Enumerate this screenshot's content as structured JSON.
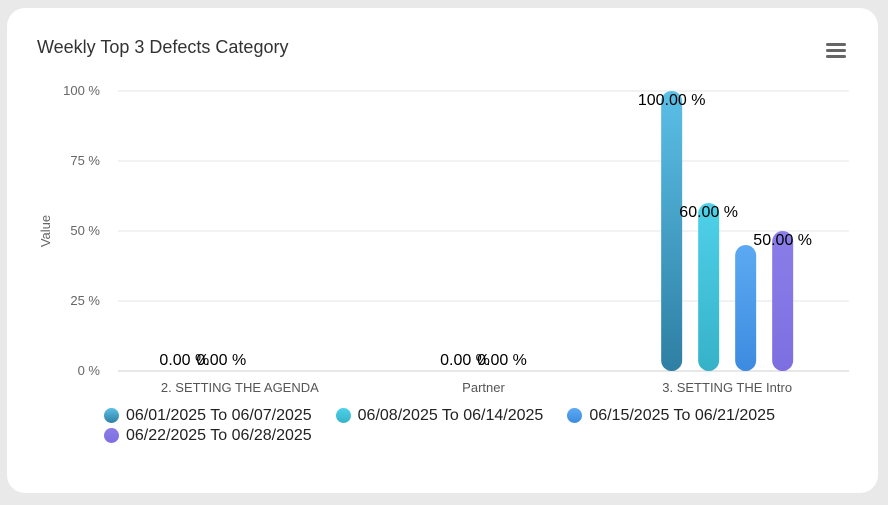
{
  "chart_data": {
    "type": "bar",
    "title": "Weekly Top 3 Defects Category",
    "ylabel": "Value",
    "ylim": [
      0,
      100
    ],
    "yticks": [
      "0 %",
      "25 %",
      "50 %",
      "75 %",
      "100 %"
    ],
    "ytick_values": [
      0,
      25,
      50,
      75,
      100
    ],
    "categories": [
      "2. SETTING THE AGENDA",
      "Partner",
      "3. SETTING THE Intro"
    ],
    "grid": true,
    "legend_position": "bottom-left",
    "series": [
      {
        "name": "06/01/2025 To 06/07/2025",
        "values": [
          0,
          0,
          100
        ],
        "labels": [
          "0.00 %",
          "",
          "100.00 %"
        ],
        "color_top": "#5bbfe6",
        "color_bottom": "#2e7fa3"
      },
      {
        "name": "06/08/2025 To 06/14/2025",
        "values": [
          0,
          0,
          60
        ],
        "labels": [
          "0.00 %",
          "0.00 %",
          "60.00 %"
        ],
        "color_top": "#4fd1ea",
        "color_bottom": "#36b2c8"
      },
      {
        "name": "06/15/2025 To 06/21/2025",
        "values": [
          0,
          0,
          45
        ],
        "labels": [
          "",
          "0.00 %",
          ""
        ],
        "color_top": "#5ca9f2",
        "color_bottom": "#3d8be0"
      },
      {
        "name": "06/22/2025 To 06/28/2025",
        "values": [
          0,
          0,
          50
        ],
        "labels": [
          "",
          "",
          "50.00 %"
        ],
        "color_top": "#8b7de8",
        "color_bottom": "#7d6fe0"
      }
    ]
  }
}
